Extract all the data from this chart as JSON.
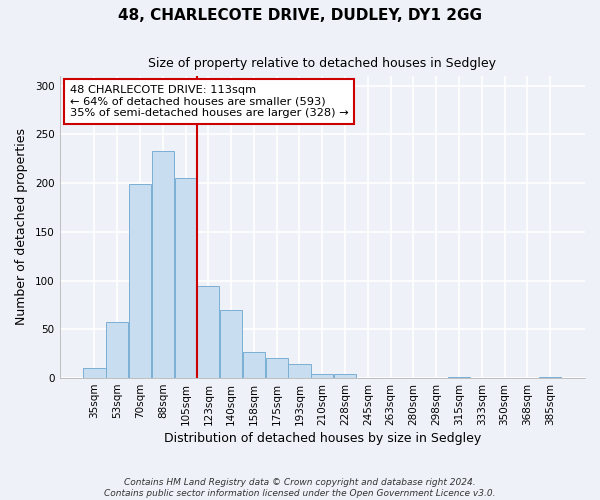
{
  "title": "48, CHARLECOTE DRIVE, DUDLEY, DY1 2GG",
  "subtitle": "Size of property relative to detached houses in Sedgley",
  "xlabel": "Distribution of detached houses by size in Sedgley",
  "ylabel": "Number of detached properties",
  "bar_labels": [
    "35sqm",
    "53sqm",
    "70sqm",
    "88sqm",
    "105sqm",
    "123sqm",
    "140sqm",
    "158sqm",
    "175sqm",
    "193sqm",
    "210sqm",
    "228sqm",
    "245sqm",
    "263sqm",
    "280sqm",
    "298sqm",
    "315sqm",
    "333sqm",
    "350sqm",
    "368sqm",
    "385sqm"
  ],
  "bar_values": [
    10,
    58,
    199,
    233,
    205,
    94,
    70,
    27,
    21,
    14,
    4,
    4,
    0,
    0,
    0,
    0,
    1,
    0,
    0,
    0,
    1
  ],
  "bar_color": "#c8ddf0",
  "bar_edge_color": "#7aafd4",
  "marker_line_color": "#cc0000",
  "ylim": [
    0,
    310
  ],
  "yticks": [
    0,
    50,
    100,
    150,
    200,
    250,
    300
  ],
  "annotation_title": "48 CHARLECOTE DRIVE: 113sqm",
  "annotation_line1": "← 64% of detached houses are smaller (593)",
  "annotation_line2": "35% of semi-detached houses are larger (328) →",
  "annotation_box_color": "#ffffff",
  "annotation_box_edge": "#cc0000",
  "footnote1": "Contains HM Land Registry data © Crown copyright and database right 2024.",
  "footnote2": "Contains public sector information licensed under the Open Government Licence v3.0.",
  "background_color": "#eef2f8",
  "plot_bg_color": "#eef2f8",
  "grid_color": "#ffffff"
}
